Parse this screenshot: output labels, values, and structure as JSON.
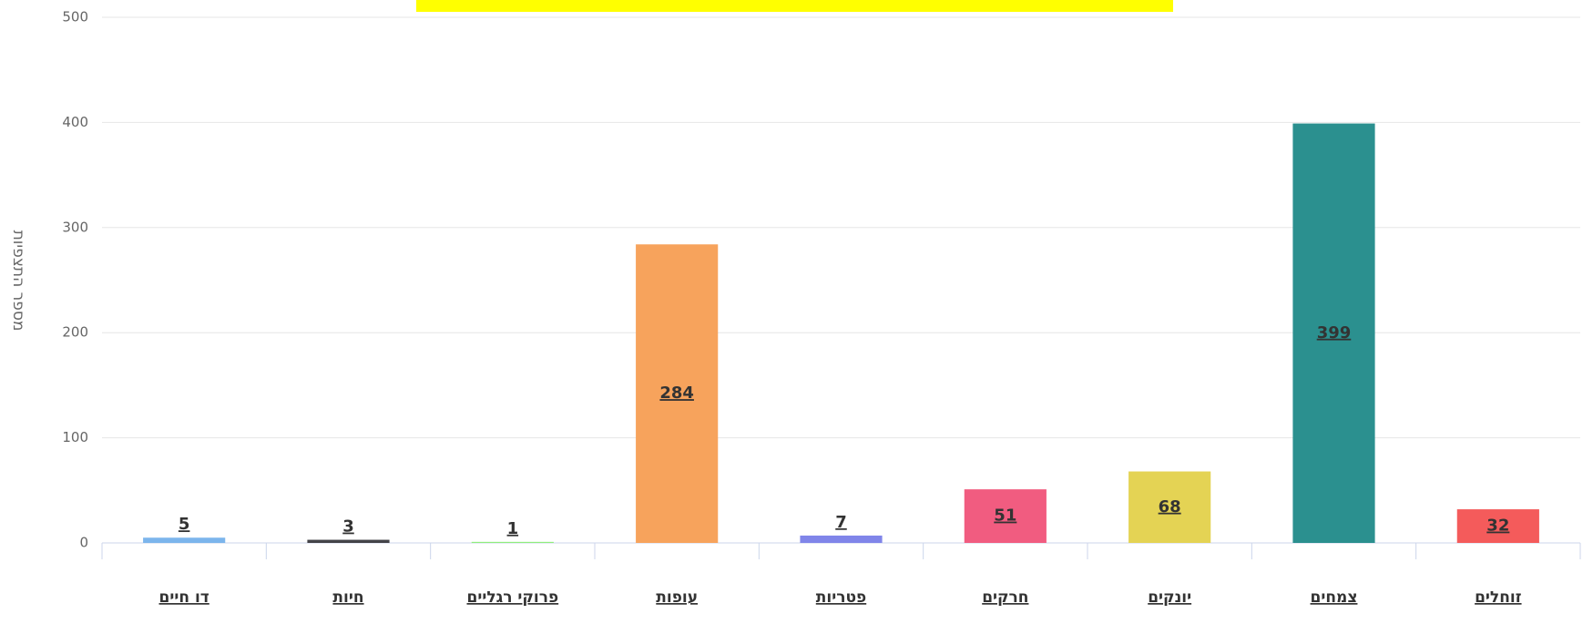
{
  "chart_data": {
    "type": "bar",
    "y_axis_label": "מספר התצפיות",
    "categories": [
      "דו חיים",
      "חיות",
      "פרוקי רגליים",
      "עופות",
      "פטריות",
      "חרקים",
      "יונקים",
      "צמחים",
      "זוחלים"
    ],
    "values": [
      5,
      3,
      1,
      284,
      7,
      51,
      68,
      399,
      32
    ],
    "colors": [
      "#7cb5ec",
      "#434348",
      "#90ed7d",
      "#f7a35c",
      "#8085e9",
      "#f15c80",
      "#e4d354",
      "#2b908f",
      "#f45b5b"
    ],
    "ylim": [
      0,
      500
    ],
    "yticks": [
      0,
      100,
      200,
      300,
      400,
      500
    ],
    "grid": true
  }
}
